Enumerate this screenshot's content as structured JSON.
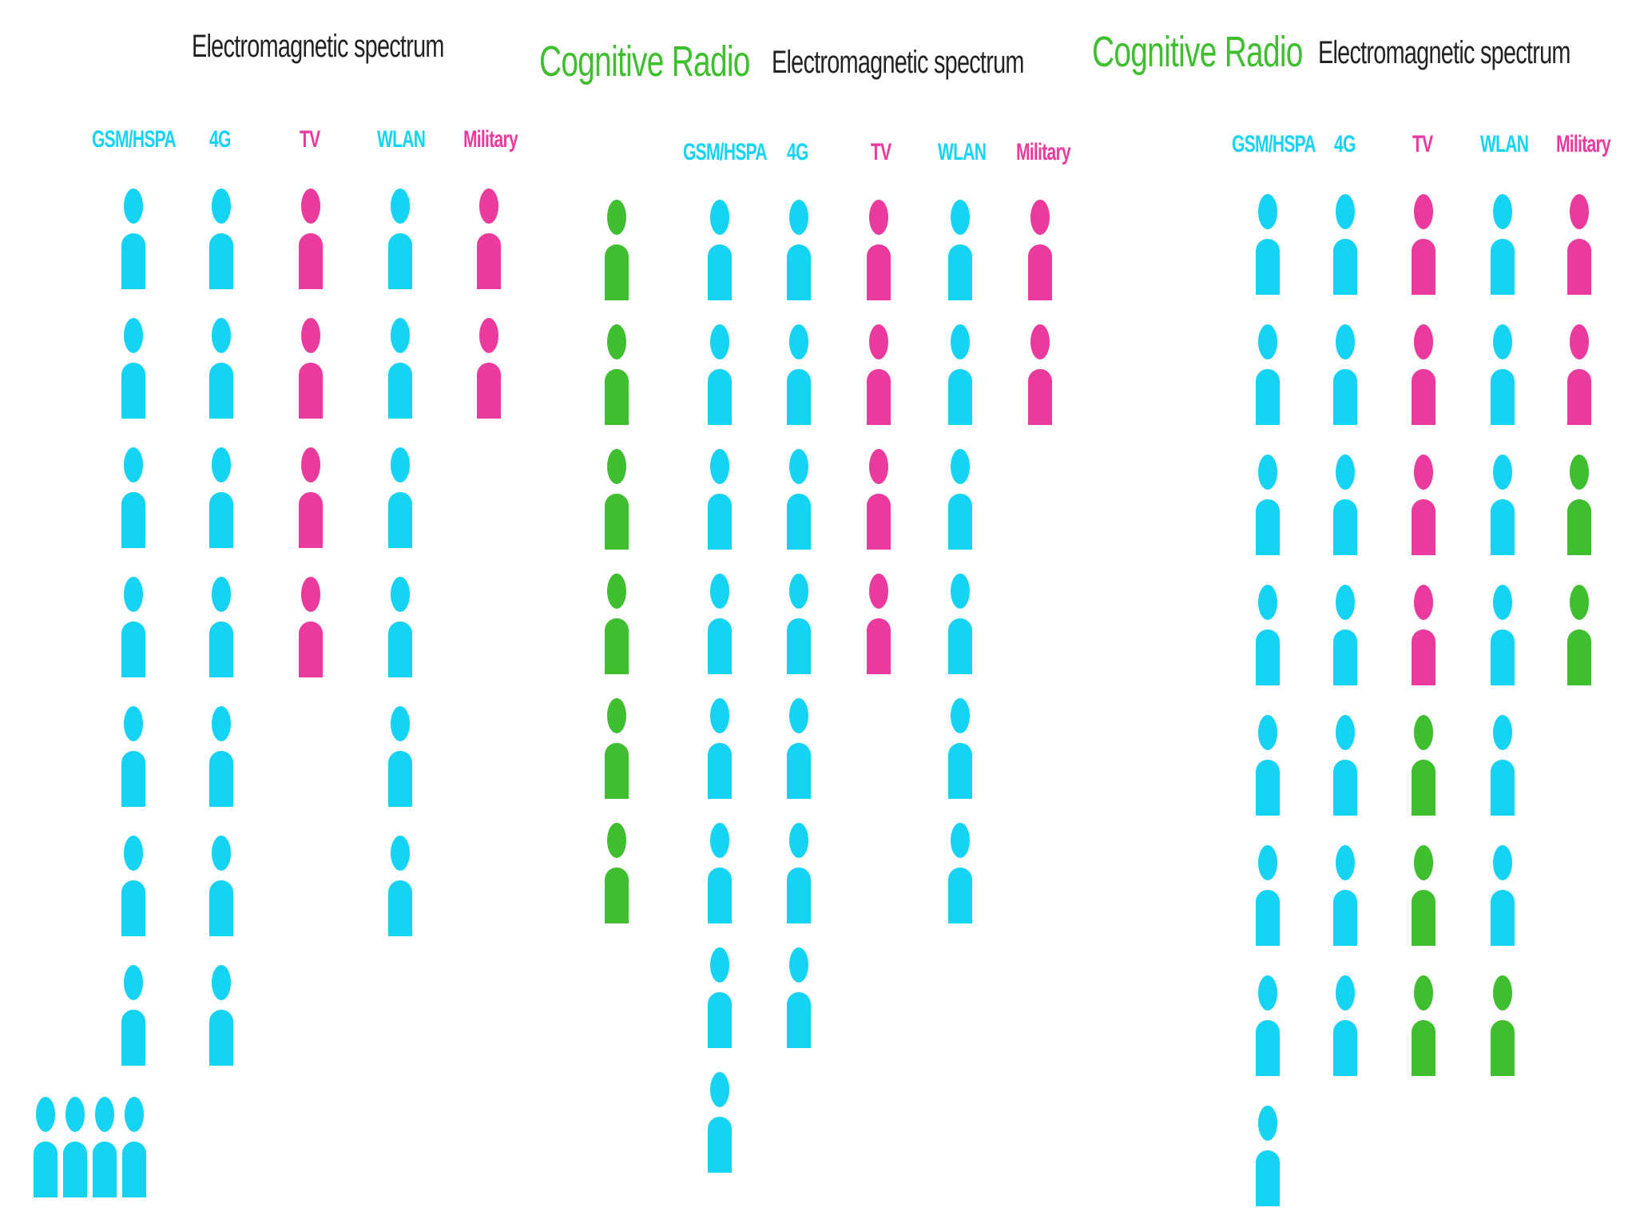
{
  "colors": {
    "primary": "#15d3f2",
    "tv_military": "#ea3a9d",
    "cognitive": "#3fbe2f",
    "title": "#222222"
  },
  "panels": [
    {
      "title": "Electromagnetic spectrum",
      "cognitive_label": "",
      "bands": [
        {
          "label": "GSM/HSPA",
          "label_color": "#15d3f2",
          "users": [
            "primary",
            "primary",
            "primary",
            "primary",
            "primary",
            "primary",
            "primary"
          ]
        },
        {
          "label": "4G",
          "label_color": "#15d3f2",
          "users": [
            "primary",
            "primary",
            "primary",
            "primary",
            "primary",
            "primary",
            "primary"
          ]
        },
        {
          "label": "TV",
          "label_color": "#ea3a9d",
          "users": [
            "tv_military",
            "tv_military",
            "tv_military",
            "tv_military"
          ]
        },
        {
          "label": "WLAN",
          "label_color": "#15d3f2",
          "users": [
            "primary",
            "primary",
            "primary",
            "primary",
            "primary",
            "primary"
          ]
        },
        {
          "label": "Military",
          "label_color": "#ea3a9d",
          "users": [
            "tv_military",
            "tv_military"
          ]
        }
      ],
      "waiting_users": 4
    },
    {
      "title": "Electromagnetic spectrum",
      "cognitive_label": "Cognitive Radio",
      "cognitive_users": 6,
      "bands": [
        {
          "label": "GSM/HSPA",
          "label_color": "#15d3f2",
          "users": [
            "primary",
            "primary",
            "primary",
            "primary",
            "primary",
            "primary",
            "primary",
            "primary"
          ]
        },
        {
          "label": "4G",
          "label_color": "#15d3f2",
          "users": [
            "primary",
            "primary",
            "primary",
            "primary",
            "primary",
            "primary",
            "primary"
          ]
        },
        {
          "label": "TV",
          "label_color": "#ea3a9d",
          "users": [
            "tv_military",
            "tv_military",
            "tv_military",
            "tv_military"
          ]
        },
        {
          "label": "WLAN",
          "label_color": "#15d3f2",
          "users": [
            "primary",
            "primary",
            "primary",
            "primary",
            "primary",
            "primary"
          ]
        },
        {
          "label": "Military",
          "label_color": "#ea3a9d",
          "users": [
            "tv_military",
            "tv_military"
          ]
        }
      ]
    },
    {
      "title": "Electromagnetic spectrum",
      "cognitive_label": "Cognitive Radio",
      "bands": [
        {
          "label": "GSM/HSPA",
          "label_color": "#15d3f2",
          "users": [
            "primary",
            "primary",
            "primary",
            "primary",
            "primary",
            "primary",
            "primary",
            "primary"
          ]
        },
        {
          "label": "4G",
          "label_color": "#15d3f2",
          "users": [
            "primary",
            "primary",
            "primary",
            "primary",
            "primary",
            "primary",
            "primary"
          ]
        },
        {
          "label": "TV",
          "label_color": "#ea3a9d",
          "users": [
            "tv_military",
            "tv_military",
            "tv_military",
            "tv_military",
            "cognitive",
            "cognitive",
            "cognitive"
          ]
        },
        {
          "label": "WLAN",
          "label_color": "#15d3f2",
          "users": [
            "primary",
            "primary",
            "primary",
            "primary",
            "primary",
            "primary",
            "cognitive"
          ]
        },
        {
          "label": "Military",
          "label_color": "#ea3a9d",
          "users": [
            "tv_military",
            "tv_military",
            "cognitive",
            "cognitive"
          ]
        }
      ]
    }
  ]
}
